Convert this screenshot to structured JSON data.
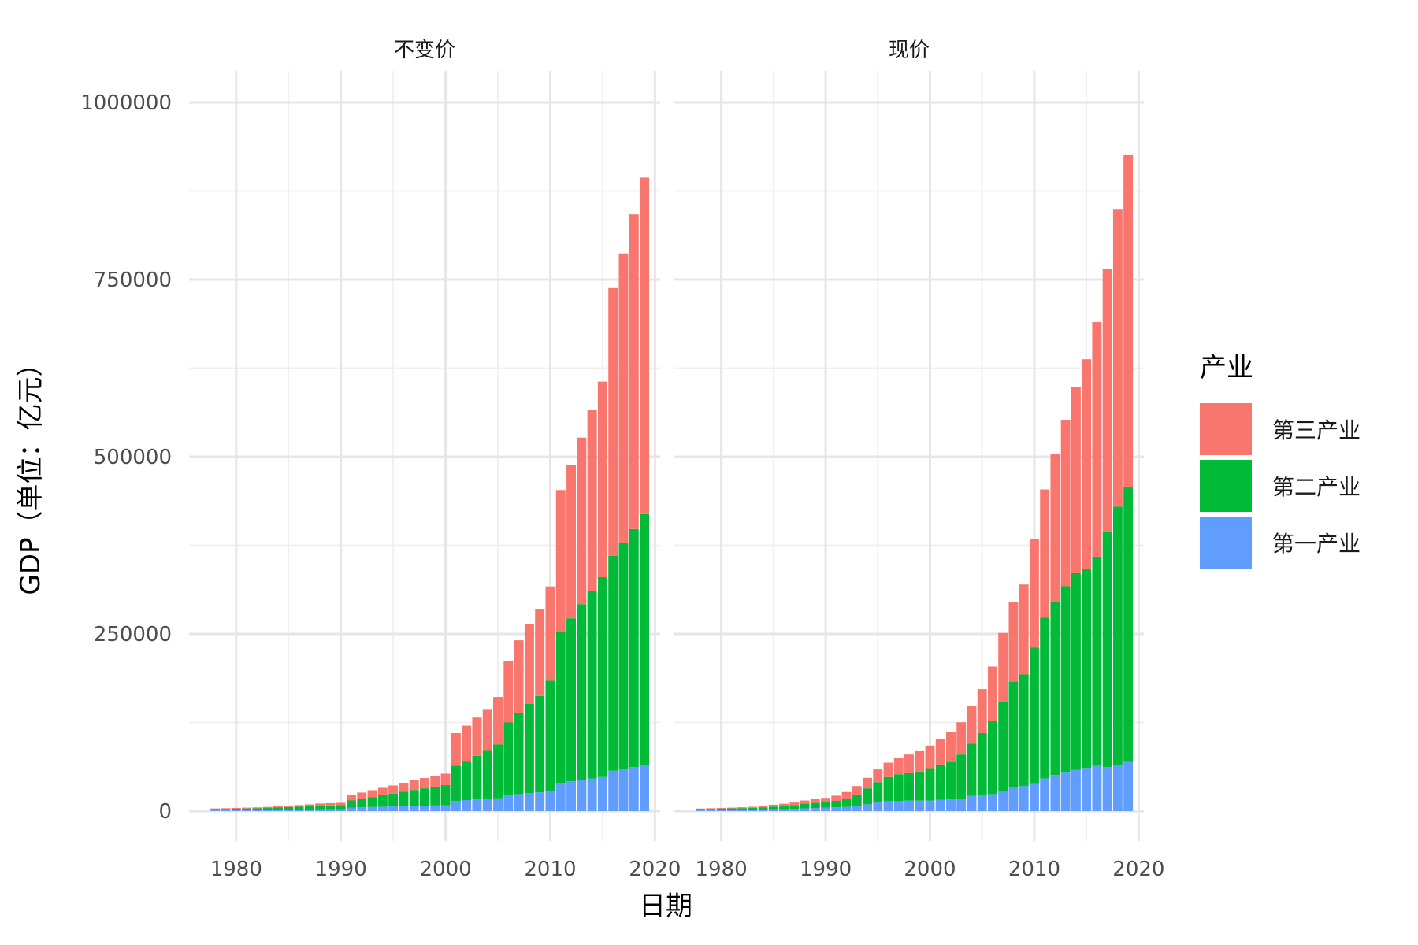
{
  "chart_data": {
    "type": "bar",
    "stacked": true,
    "xlabel": "日期",
    "ylabel": "GDP（单位：亿元）",
    "ylim": [
      0,
      1000000
    ],
    "yticks": [
      0,
      250000,
      500000,
      750000,
      1000000
    ],
    "ytick_labels": [
      "0",
      "250000",
      "500000",
      "750000",
      "1000000"
    ],
    "xlim": [
      1975.5,
      2020.5
    ],
    "xticks": [
      1980,
      1990,
      2000,
      2010,
      2020
    ],
    "xtick_labels": [
      "1980",
      "1990",
      "2000",
      "2010",
      "2020"
    ],
    "grid": true,
    "legend": {
      "title": "产业",
      "position": "right",
      "entries": [
        {
          "name": "第三产业",
          "color": "#F8766D"
        },
        {
          "name": "第二产业",
          "color": "#00BA38"
        },
        {
          "name": "第一产业",
          "color": "#619CFF"
        }
      ]
    },
    "series_colors": {
      "primary": "#619CFF",
      "secondary": "#00BA38",
      "tertiary": "#F8766D"
    },
    "panels": [
      {
        "title": "不变价",
        "years": [
          1978,
          1979,
          1980,
          1981,
          1982,
          1983,
          1984,
          1985,
          1986,
          1987,
          1988,
          1989,
          1990,
          1991,
          1992,
          1993,
          1994,
          1995,
          1996,
          1997,
          1998,
          1999,
          2000,
          2001,
          2002,
          2003,
          2004,
          2005,
          2006,
          2007,
          2008,
          2009,
          2010,
          2011,
          2012,
          2013,
          2014,
          2015,
          2016,
          2017,
          2018,
          2019
        ],
        "primary": [
          1000,
          1100,
          1200,
          1300,
          1400,
          1500,
          1700,
          1900,
          2000,
          2200,
          2400,
          2500,
          2700,
          5000,
          5400,
          5800,
          6200,
          6600,
          7000,
          7300,
          7600,
          7900,
          8200,
          14500,
          15500,
          16500,
          17000,
          18000,
          23000,
          24000,
          25500,
          26500,
          28000,
          40000,
          42000,
          44000,
          46000,
          48000,
          57000,
          60000,
          62000,
          65000
        ],
        "secondary": [
          1800,
          2000,
          2200,
          2400,
          2600,
          2900,
          3300,
          3800,
          4200,
          4700,
          5300,
          5500,
          5700,
          10000,
          12000,
          14000,
          16000,
          18000,
          20500,
          22500,
          24500,
          26500,
          28500,
          49500,
          55500,
          61500,
          68000,
          76000,
          102000,
          114000,
          126000,
          136000,
          156000,
          213000,
          230000,
          248000,
          265000,
          282000,
          303000,
          318000,
          336000,
          354000
        ],
        "tertiary": [
          900,
          1000,
          1100,
          1200,
          1300,
          1500,
          1800,
          2100,
          2300,
          2600,
          3000,
          3200,
          3300,
          8000,
          8800,
          9700,
          10600,
          11500,
          12500,
          13500,
          14500,
          15400,
          16100,
          46000,
          49500,
          54000,
          59000,
          67000,
          87000,
          103000,
          112000,
          123000,
          133000,
          200000,
          216000,
          235000,
          255000,
          276000,
          378000,
          409000,
          444000,
          475000
        ]
      },
      {
        "title": "现价",
        "years": [
          1978,
          1979,
          1980,
          1981,
          1982,
          1983,
          1984,
          1985,
          1986,
          1987,
          1988,
          1989,
          1990,
          1991,
          1992,
          1993,
          1994,
          1995,
          1996,
          1997,
          1998,
          1999,
          2000,
          2001,
          2002,
          2003,
          2004,
          2005,
          2006,
          2007,
          2008,
          2009,
          2010,
          2011,
          2012,
          2013,
          2014,
          2015,
          2016,
          2017,
          2018,
          2019
        ],
        "primary": [
          1000,
          1270,
          1370,
          1550,
          1760,
          1960,
          2300,
          2560,
          2790,
          3230,
          3860,
          4270,
          5060,
          5340,
          5870,
          6960,
          9570,
          12140,
          14020,
          14440,
          14820,
          14770,
          14940,
          15780,
          16540,
          17380,
          21410,
          22420,
          24040,
          28630,
          33700,
          35230,
          39360,
          46160,
          50900,
          55330,
          58340,
          60860,
          63670,
          62100,
          64730,
          70470
        ],
        "secondary": [
          1750,
          1910,
          2190,
          2260,
          2380,
          2650,
          3110,
          3870,
          4500,
          5250,
          6590,
          7280,
          7720,
          9100,
          11700,
          16450,
          22450,
          28680,
          33840,
          37540,
          39000,
          41030,
          45560,
          49510,
          53900,
          62440,
          73900,
          87600,
          103700,
          125800,
          149000,
          157600,
          191600,
          227000,
          244600,
          261900,
          277300,
          281300,
          295400,
          331600,
          364800,
          386200
        ],
        "tertiary": [
          870,
          880,
          980,
          1060,
          1260,
          1470,
          1920,
          2590,
          3100,
          3610,
          4480,
          5630,
          5890,
          7340,
          9360,
          11920,
          14930,
          17950,
          20430,
          23330,
          26000,
          28760,
          32000,
          36500,
          40700,
          45500,
          52700,
          62100,
          76100,
          97000,
          111700,
          126900,
          153400,
          180700,
          207900,
          235000,
          263000,
          295400,
          331000,
          371300,
          419100,
          469000
        ]
      }
    ]
  }
}
